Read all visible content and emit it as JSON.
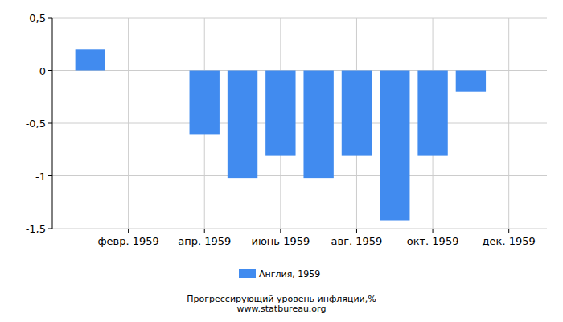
{
  "chart_data": {
    "type": "bar",
    "title": "Прогрессирующий уровень инфляции,%",
    "subtitle": "www.statbureau.org",
    "categories": [
      null,
      "февр. 1959",
      null,
      "апр. 1959",
      null,
      "июнь 1959",
      null,
      "авг. 1959",
      null,
      "окт. 1959",
      null,
      "дек. 1959"
    ],
    "series": [
      {
        "name": "Англия, 1959",
        "color": "#418bef",
        "values": [
          0.2,
          0,
          0,
          -0.61,
          -1.02,
          -0.81,
          -1.02,
          -0.81,
          -1.42,
          -0.81,
          -0.2,
          0
        ]
      }
    ],
    "ylim": [
      -1.5,
      0.5
    ],
    "yticks": [
      {
        "value": 0.5,
        "label": "0,5"
      },
      0,
      {
        "value": -0.5,
        "label": "-0,5"
      },
      -1,
      {
        "value": -1.5,
        "label": "-1,5"
      }
    ],
    "grid": true,
    "legend": "bottom"
  }
}
